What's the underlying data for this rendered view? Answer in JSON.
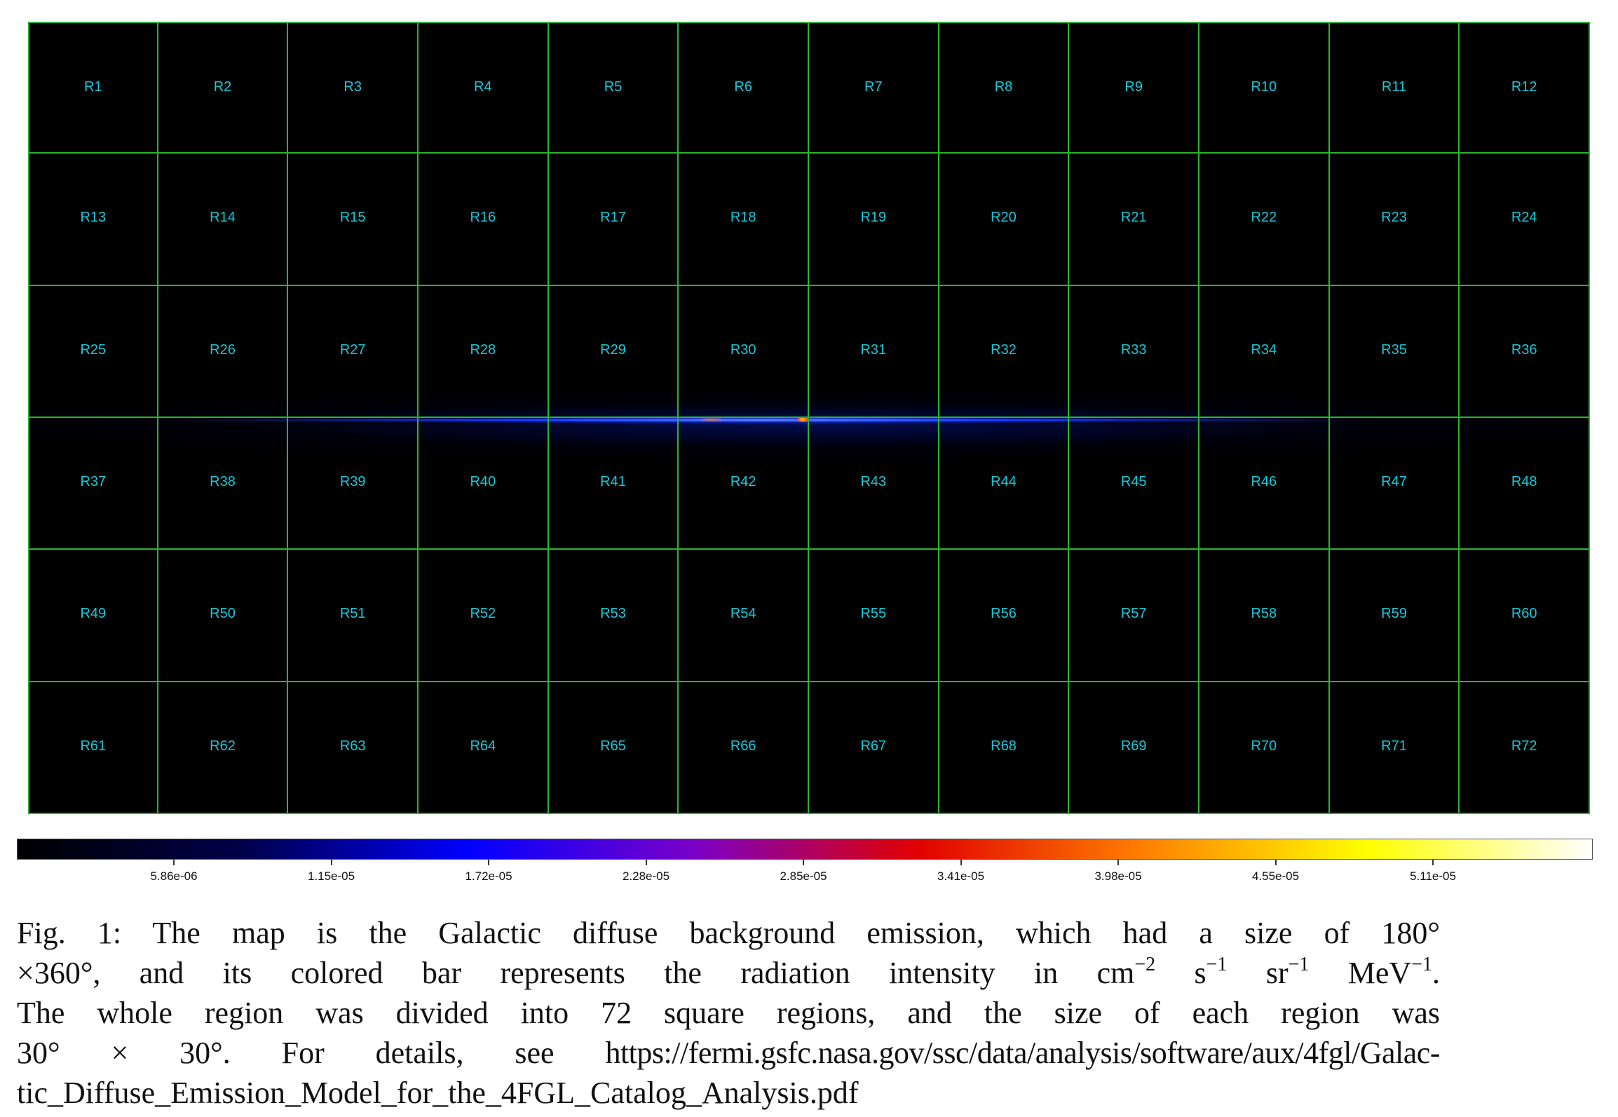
{
  "figure": {
    "regions": [
      "R1",
      "R2",
      "R3",
      "R4",
      "R5",
      "R6",
      "R7",
      "R8",
      "R9",
      "R10",
      "R11",
      "R12",
      "R13",
      "R14",
      "R15",
      "R16",
      "R17",
      "R18",
      "R19",
      "R20",
      "R21",
      "R22",
      "R23",
      "R24",
      "R25",
      "R26",
      "R27",
      "R28",
      "R29",
      "R30",
      "R31",
      "R32",
      "R33",
      "R34",
      "R35",
      "R36",
      "R37",
      "R38",
      "R39",
      "R40",
      "R41",
      "R42",
      "R43",
      "R44",
      "R45",
      "R46",
      "R47",
      "R48",
      "R49",
      "R50",
      "R51",
      "R52",
      "R53",
      "R54",
      "R55",
      "R56",
      "R57",
      "R58",
      "R59",
      "R60",
      "R61",
      "R62",
      "R63",
      "R64",
      "R65",
      "R66",
      "R67",
      "R68",
      "R69",
      "R70",
      "R71",
      "R72"
    ],
    "colors": {
      "grid_line": "#2bb52b",
      "region_label": "#18c8d8",
      "map_background": "#000000"
    },
    "colorbar": {
      "gradient": [
        "#000000",
        "#00004a",
        "#0000ff",
        "#7a00c8",
        "#e00000",
        "#ff7f00",
        "#ffff00",
        "#ffffff"
      ],
      "ticks": [
        "5.86e-06",
        "1.15e-05",
        "1.72e-05",
        "2.28e-05",
        "2.85e-05",
        "3.41e-05",
        "3.98e-05",
        "4.55e-05",
        "5.11e-05"
      ]
    }
  },
  "caption": {
    "line1": "Fig. 1: The map is the Galactic diffuse background emission, which had a size of 180°",
    "line2_a": "×360°, and its colored bar represents the radiation intensity in cm",
    "line2_sup1": "−2",
    "line2_b": " s",
    "line2_sup2": "−1",
    "line2_c": " sr",
    "line2_sup3": "−1",
    "line2_d": " MeV",
    "line2_sup4": "−1",
    "line2_e": ".",
    "line3": "The whole region was divided into 72 square regions, and the size of each region was",
    "line4_a": "30° × 30°. For details, see ",
    "line4_url": "https://fermi.gsfc.nasa.gov/ssc/data/analysis/software/aux/4fgl/Galac-",
    "line5": "tic_Diffuse_Emission_Model_for_the_4FGL_Catalog_Analysis.pdf"
  }
}
